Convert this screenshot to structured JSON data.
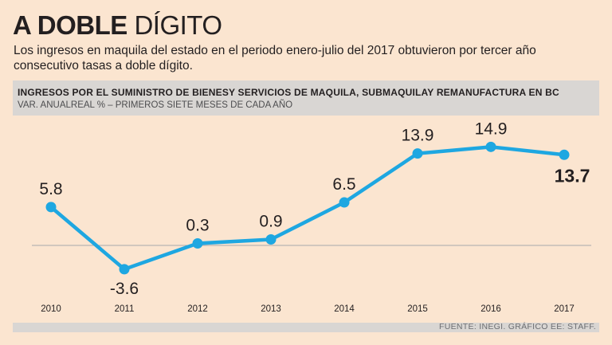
{
  "header": {
    "title_bold": "A DOBLE",
    "title_light": "DÍGITO",
    "subtitle": "Los ingresos en maquila del estado en el periodo enero-julio del 2017 obtuvieron por tercer año consecutivo tasas a doble dígito."
  },
  "chart_data": {
    "type": "line",
    "title": "INGRESOS POR EL SUMINISTRO DE BIENESY SERVICIOS DE MAQUILA, SUBMAQUILAY REMANUFACTURA EN BC",
    "subtitle": "VAR. ANUALREAL % – PRIMEROS SIETE MESES DE CADA AÑO",
    "categories": [
      "2010",
      "2011",
      "2012",
      "2013",
      "2014",
      "2015",
      "2016",
      "2017"
    ],
    "series": [
      {
        "name": "Var. anual real %",
        "values": [
          5.8,
          -3.6,
          0.3,
          0.9,
          6.5,
          13.9,
          14.9,
          13.7
        ],
        "labels": [
          "5.8",
          "-3.6",
          "0.3",
          "0.9",
          "6.5",
          "13.9",
          "14.9",
          "13.7"
        ]
      }
    ],
    "ylim": [
      -5,
      18
    ],
    "baseline": 0,
    "highlight_last": true,
    "line_color": "#1ea7e1",
    "xlabel": "",
    "ylabel": ""
  },
  "footer": {
    "source": "FUENTE: INEGI. GRÁFICO EE: STAFF."
  },
  "colors": {
    "background": "#fbe5d0",
    "banner": "#d9d6d3",
    "text": "#231f20",
    "line": "#1ea7e1",
    "baseline": "#a7a9ac"
  }
}
